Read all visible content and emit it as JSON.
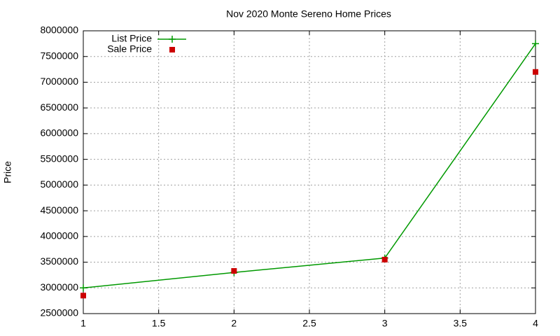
{
  "chart_data": {
    "type": "line",
    "title": "Nov 2020 Monte Sereno Home Prices",
    "y_label": "Price",
    "x": [
      1,
      2,
      3,
      4
    ],
    "series": [
      {
        "name": "List Price",
        "color": "#009900",
        "style": "linespoints",
        "values": [
          3000000,
          3300000,
          3580000,
          7750000
        ]
      },
      {
        "name": "Sale Price",
        "color": "#cc0000",
        "style": "points",
        "values": [
          2850000,
          3330000,
          3550000,
          7200000
        ]
      }
    ],
    "xlim": [
      1,
      4
    ],
    "xticks": [
      1,
      1.5,
      2,
      2.5,
      3,
      3.5,
      4
    ],
    "ylim": [
      2500000,
      8000000
    ],
    "yticks": [
      2500000,
      3000000,
      3500000,
      4000000,
      4500000,
      5000000,
      5500000,
      6000000,
      6500000,
      7000000,
      7500000,
      8000000
    ],
    "grid": true,
    "legend": "top-left"
  }
}
